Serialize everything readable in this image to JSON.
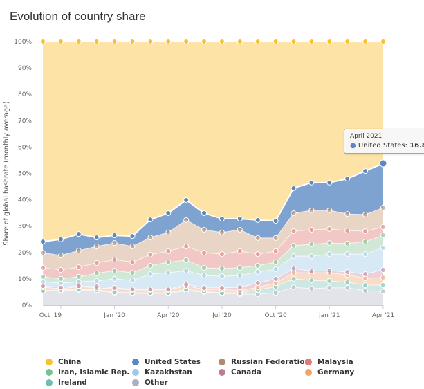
{
  "title": "Evolution of country share",
  "chart_data": {
    "type": "area",
    "stacked": true,
    "title": "Evolution of country share",
    "xlabel": "",
    "ylabel": "Share of global hashrate (monthly average)",
    "ylim": [
      0,
      100
    ],
    "y_ticks": [
      "0%",
      "10%",
      "20%",
      "30%",
      "40%",
      "50%",
      "60%",
      "70%",
      "80%",
      "90%",
      "100%"
    ],
    "x": [
      "Sep 2019",
      "Oct 2019",
      "Nov 2019",
      "Dec 2019",
      "Jan 2020",
      "Feb 2020",
      "Mar 2020",
      "Apr 2020",
      "May 2020",
      "Jun 2020",
      "Jul 2020",
      "Aug 2020",
      "Sep 2020",
      "Oct 2020",
      "Nov 2020",
      "Dec 2020",
      "Jan 2021",
      "Feb 2021",
      "Mar 2021",
      "Apr 2021"
    ],
    "x_ticks": [
      {
        "at": "Oct 2019",
        "label": "Oct '19"
      },
      {
        "at": "Jan 2020",
        "label": "Jan '20"
      },
      {
        "at": "Apr 2020",
        "label": "Apr '20"
      },
      {
        "at": "Jul 2020",
        "label": "Jul '20"
      },
      {
        "at": "Oct 2020",
        "label": "Oct '20"
      },
      {
        "at": "Jan 2021",
        "label": "Jan '21"
      },
      {
        "at": "Apr 2021",
        "label": "Apr '21"
      }
    ],
    "grid": true,
    "legend_position": "bottom",
    "series": [
      {
        "name": "Other",
        "color": "#a9afc0",
        "fill": "#e3e3ea",
        "values": [
          5.3,
          5.5,
          5.8,
          5.5,
          4.7,
          4.5,
          4.5,
          4.5,
          5.5,
          5.0,
          4.5,
          4.2,
          4.2,
          4.7,
          6.8,
          6.3,
          6.6,
          6.6,
          5.5,
          5.2
        ]
      },
      {
        "name": "Ireland",
        "color": "#6fbfb1",
        "fill": "#cde8e2",
        "values": [
          0.2,
          0.3,
          0.2,
          0.3,
          0.3,
          0.2,
          0.2,
          0.2,
          0.5,
          0.2,
          0.2,
          0.5,
          1.6,
          2.4,
          3.2,
          3.1,
          2.6,
          2.1,
          2.1,
          2.4
        ]
      },
      {
        "name": "Germany",
        "color": "#eea46c",
        "fill": "#f9dcc7",
        "values": [
          1.3,
          0.5,
          1.1,
          0.8,
          1.3,
          1.1,
          1.1,
          1.1,
          1.3,
          0.8,
          1.3,
          0.8,
          1.0,
          1.3,
          2.3,
          2.9,
          3.1,
          2.8,
          2.6,
          2.9
        ]
      },
      {
        "name": "Canada",
        "color": "#c07c96",
        "fill": "#ecd1db",
        "values": [
          0.5,
          0.5,
          0.2,
          0.5,
          0.3,
          0.2,
          0.2,
          0.2,
          0.6,
          0.6,
          0.6,
          1.3,
          1.6,
          1.6,
          1.6,
          0.6,
          0.8,
          1.1,
          1.6,
          2.9
        ]
      },
      {
        "name": "Kazakhstan",
        "color": "#9cc9ea",
        "fill": "#d8e9f6",
        "values": [
          1.6,
          1.6,
          1.6,
          2.1,
          3.4,
          3.4,
          5.8,
          6.3,
          5.2,
          4.7,
          4.4,
          4.5,
          4.2,
          3.6,
          4.7,
          5.7,
          6.3,
          6.8,
          7.6,
          8.4
        ]
      },
      {
        "name": "Iran, Islamic Rep.",
        "color": "#7cc08f",
        "fill": "#d0e8d5",
        "values": [
          1.9,
          1.6,
          1.9,
          2.9,
          3.1,
          2.9,
          3.2,
          4.0,
          4.0,
          2.9,
          2.9,
          2.9,
          2.4,
          2.7,
          4.0,
          4.5,
          4.2,
          4.0,
          4.7,
          4.7
        ]
      },
      {
        "name": "Malaysia",
        "color": "#e07b7b",
        "fill": "#f2c8c6",
        "values": [
          3.4,
          3.4,
          3.6,
          3.9,
          4.2,
          4.0,
          4.2,
          4.2,
          5.2,
          5.7,
          5.5,
          6.3,
          4.4,
          4.2,
          5.5,
          5.5,
          5.3,
          4.9,
          4.0,
          3.2
        ]
      },
      {
        "name": "Russian Federation",
        "color": "#b08a6e",
        "fill": "#e8d5c6",
        "values": [
          5.7,
          5.5,
          6.3,
          6.3,
          6.3,
          6.0,
          6.5,
          7.1,
          10.0,
          8.7,
          8.2,
          8.1,
          6.1,
          5.0,
          6.8,
          7.4,
          7.1,
          6.3,
          6.3,
          7.3
        ]
      },
      {
        "name": "United States",
        "color": "#5b87c2",
        "fill": "#7ea3d0",
        "values": [
          4.2,
          6.1,
          6.3,
          3.4,
          2.9,
          3.9,
          6.8,
          7.3,
          7.6,
          6.3,
          5.2,
          4.2,
          6.8,
          6.5,
          9.5,
          10.5,
          10.5,
          13.4,
          16.5,
          16.8
        ]
      },
      {
        "name": "China",
        "color": "#fbc02d",
        "fill": "#fde3a6",
        "values": [
          75.9,
          75.0,
          73.0,
          74.3,
          73.5,
          73.8,
          67.5,
          65.1,
          60.1,
          65.1,
          67.2,
          67.2,
          67.7,
          68.0,
          55.6,
          53.5,
          53.5,
          52.0,
          49.1,
          46.2
        ]
      }
    ],
    "legend_order": [
      "China",
      "United States",
      "Russian Federation",
      "Malaysia",
      "Iran, Islamic Rep.",
      "Kazakhstan",
      "Canada",
      "Germany",
      "Ireland",
      "Other"
    ]
  },
  "tooltip": {
    "date": "April 2021",
    "series": "United States",
    "label": "United States:",
    "value": "16.8"
  }
}
